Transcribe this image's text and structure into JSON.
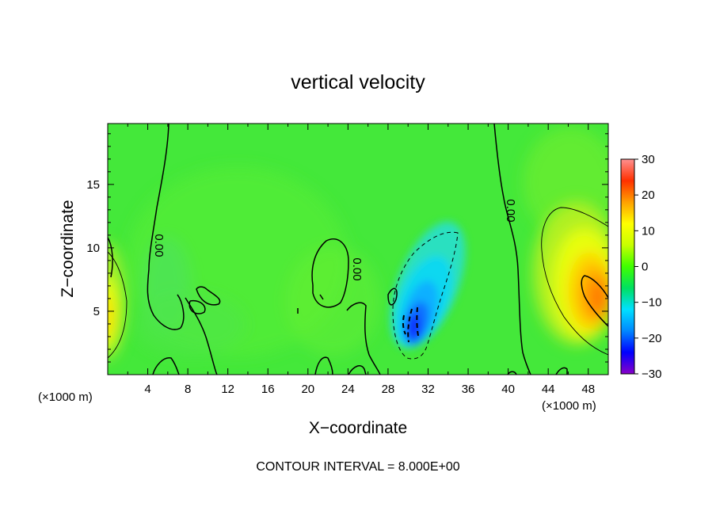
{
  "chart_data": {
    "type": "heatmap",
    "title": "vertical velocity",
    "xlabel": "X−coordinate",
    "ylabel": "Z−coordinate",
    "x_unit_left": "(×1000 m)",
    "x_unit_right": "(×1000 m)",
    "footer": "CONTOUR INTERVAL = 8.000E+00",
    "xlim": [
      0,
      50
    ],
    "ylim": [
      0,
      19.8
    ],
    "x_ticks": [
      4,
      8,
      12,
      16,
      20,
      24,
      28,
      32,
      36,
      40,
      44,
      48
    ],
    "x_tick_labels": [
      "4",
      "8",
      "12",
      "16",
      "20",
      "24",
      "28",
      "32",
      "36",
      "40",
      "44",
      "48"
    ],
    "y_ticks": [
      5,
      10,
      15
    ],
    "y_tick_labels": [
      "5",
      "10",
      "15"
    ],
    "colorbar": {
      "min": -30,
      "max": 30,
      "ticks": [
        30,
        20,
        10,
        0,
        -10,
        -20,
        -30
      ],
      "tick_labels": [
        "30",
        "20",
        "10",
        "0",
        "−10",
        "−20",
        "−30"
      ],
      "colors": [
        "#8800c8",
        "#0000ff",
        "#0088ff",
        "#00e0ff",
        "#00e060",
        "#40ff00",
        "#c8ff00",
        "#ffff00",
        "#ffa000",
        "#ff3000",
        "#ff9090"
      ]
    },
    "contour_labels": [
      "0.00",
      "0.00",
      "0.00",
      "0.00"
    ],
    "features": [
      {
        "kind": "updraft",
        "x": 48.5,
        "z": 5.5,
        "value": 20
      },
      {
        "kind": "updraft",
        "x": 0.5,
        "z": 5,
        "value": 10
      },
      {
        "kind": "downdraft",
        "x": 30.8,
        "z": 4.2,
        "value": -20
      },
      {
        "kind": "downdraft",
        "x": 31.8,
        "z": 8.5,
        "value": -8
      }
    ]
  }
}
